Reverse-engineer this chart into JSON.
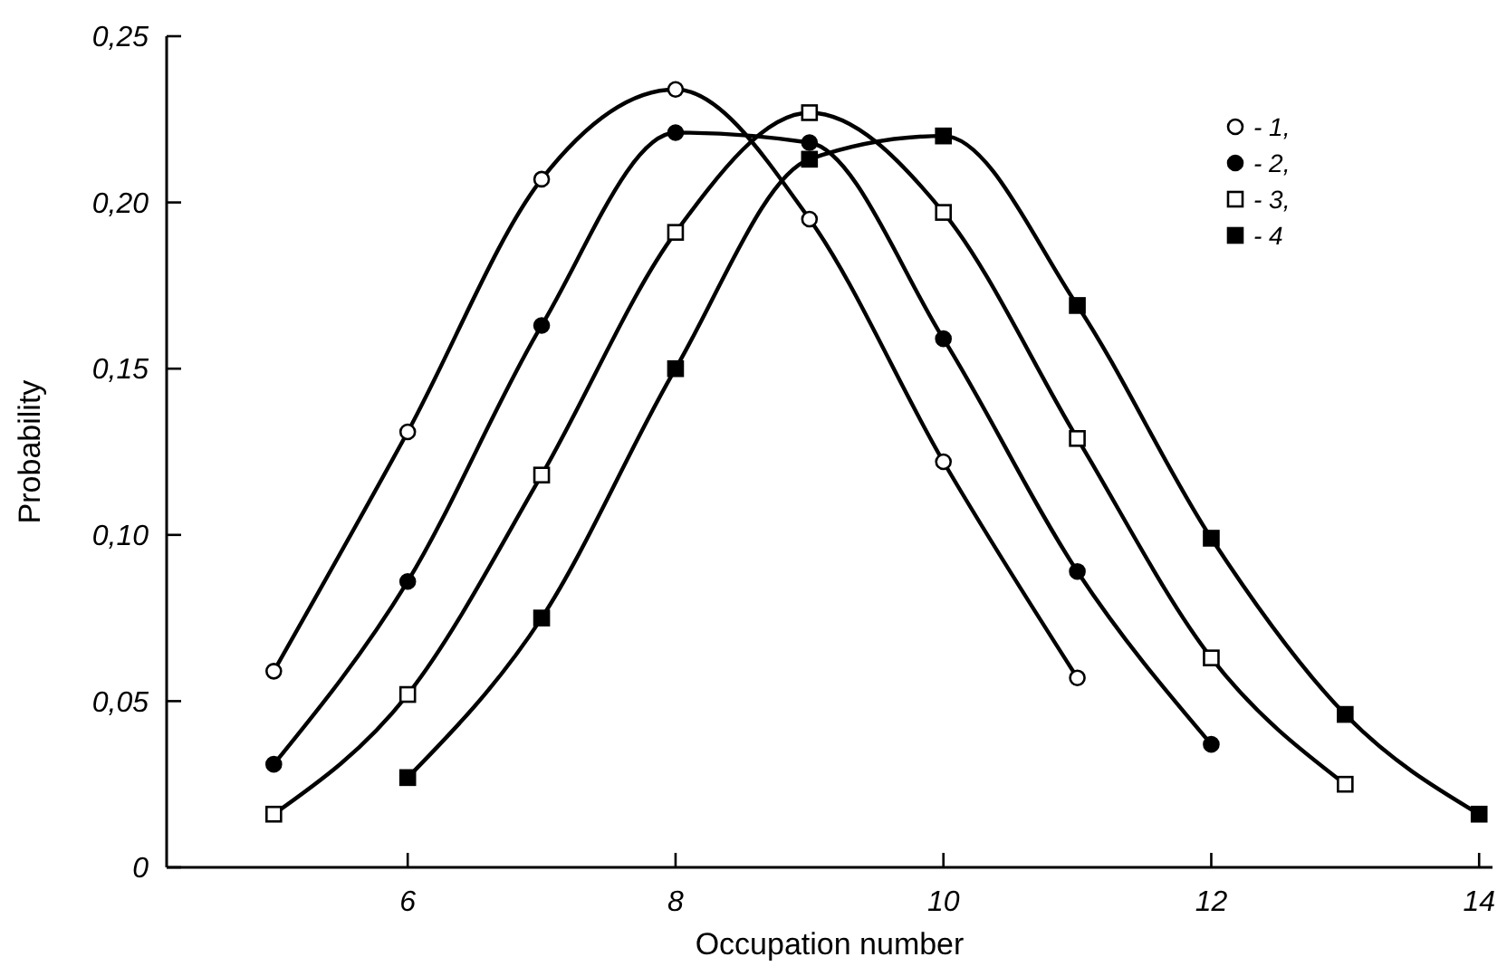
{
  "chart_data": {
    "type": "line",
    "xlabel": "Occupation number",
    "ylabel": "Probability",
    "xlim": [
      4.2,
      14.1
    ],
    "xticks": [
      6,
      8,
      10,
      12,
      14
    ],
    "ylim": [
      0,
      0.25
    ],
    "yticks": [
      0,
      {
        "value": 0.05,
        "label": "0,05"
      },
      {
        "value": 0.1,
        "label": "0,10"
      },
      {
        "value": 0.15,
        "label": "0,15"
      },
      {
        "value": 0.2,
        "label": "0,20"
      },
      {
        "value": 0.25,
        "label": "0,25"
      }
    ],
    "grid": false,
    "legend": "top right",
    "line_style": "solid",
    "series": [
      {
        "name": "- 1,",
        "color": "#000000",
        "colors": [
          "#ffffff",
          "#ffffff",
          "#ffffff",
          "#ffffff",
          "#ffffff",
          "#ffffff",
          "#ffffff"
        ],
        "marker": "circle",
        "x": [
          5,
          6,
          7,
          8,
          9,
          10,
          11
        ],
        "values": [
          0.059,
          0.131,
          0.207,
          0.234,
          0.195,
          0.122,
          0.057
        ]
      },
      {
        "name": "- 2,",
        "color": "#000000",
        "marker": "circle",
        "x": [
          5,
          6,
          7,
          8,
          9,
          10,
          11,
          12
        ],
        "values": [
          0.031,
          0.086,
          0.163,
          0.221,
          0.218,
          0.159,
          0.089,
          0.037
        ]
      },
      {
        "name": "- 3,",
        "color": "#000000",
        "colors": [
          "#ffffff",
          "#ffffff",
          "#ffffff",
          "#ffffff",
          "#ffffff",
          "#ffffff",
          "#ffffff",
          "#ffffff",
          "#ffffff"
        ],
        "marker": "square",
        "x": [
          5,
          6,
          7,
          8,
          9,
          10,
          11,
          12,
          13
        ],
        "values": [
          0.016,
          0.052,
          0.118,
          0.191,
          0.227,
          0.197,
          0.129,
          0.063,
          0.025
        ]
      },
      {
        "name": "- 4",
        "color": "#000000",
        "marker": "square",
        "x": [
          6,
          7,
          8,
          9,
          10,
          11,
          12,
          13,
          14
        ],
        "values": [
          0.027,
          0.075,
          0.15,
          0.213,
          0.22,
          0.169,
          0.099,
          0.046,
          0.016
        ]
      }
    ]
  }
}
